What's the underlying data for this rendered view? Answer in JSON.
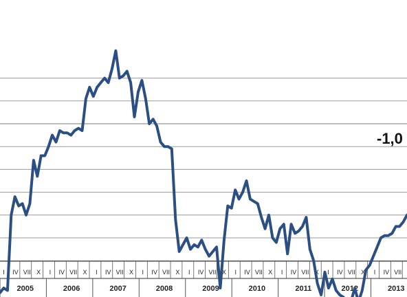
{
  "chart_data": {
    "type": "line",
    "title": "",
    "xlabel": "",
    "ylabel": "",
    "grid": true,
    "month_tick_labels": [
      "I",
      "IV",
      "VII",
      "X"
    ],
    "years": [
      "2005",
      "2006",
      "2007",
      "2008",
      "2009",
      "2010",
      "2011",
      "2012",
      "2013"
    ],
    "annotation": "-1,0",
    "line_color": "#2b4f82",
    "series": [
      {
        "values": [
          -7.4,
          -7.2,
          -7.3,
          -4.0,
          -3.2,
          -3.6,
          -3.5,
          -4.0,
          -3.5,
          -1.6,
          -2.3,
          -1.4,
          -1.4,
          -1.0,
          -0.5,
          -0.8,
          -0.3,
          -0.4,
          -0.4,
          -0.5,
          -0.3,
          -0.2,
          -0.3,
          1.1,
          1.6,
          1.2,
          1.6,
          1.8,
          2.0,
          1.8,
          2.4,
          3.2,
          2.0,
          2.1,
          2.3,
          1.8,
          0.3,
          1.4,
          1.9,
          1.1,
          0.0,
          0.2,
          -0.1,
          -0.8,
          -1.0,
          -1.0,
          -1.1,
          -4.2,
          -5.6,
          -5.3,
          -5.0,
          -5.5,
          -5.3,
          -5.4,
          -5.1,
          -5.5,
          -5.8,
          -5.6,
          -5.4,
          -7.2,
          -5.1,
          -3.6,
          -3.7,
          -2.9,
          -3.3,
          -3.0,
          -2.5,
          -3.3,
          -3.4,
          -3.5,
          -4.1,
          -4.6,
          -4.0,
          -5.0,
          -5.2,
          -4.6,
          -4.4,
          -5.7,
          -4.4,
          -4.8,
          -4.7,
          -4.5,
          -4.1,
          -5.5,
          -6.0,
          -7.0,
          -7.5,
          -6.5,
          -7.2,
          -6.8,
          -7.3,
          -7.5,
          -7.6,
          -8.1,
          -7.8,
          -7.2,
          -7.8,
          -7.3,
          -6.4,
          -6.2,
          -5.8,
          -5.4,
          -5.0,
          -4.9,
          -4.9,
          -4.8,
          -4.5,
          -4.5,
          -4.3,
          -4.0
        ]
      }
    ],
    "ylim": [
      -9,
      2.5
    ]
  }
}
